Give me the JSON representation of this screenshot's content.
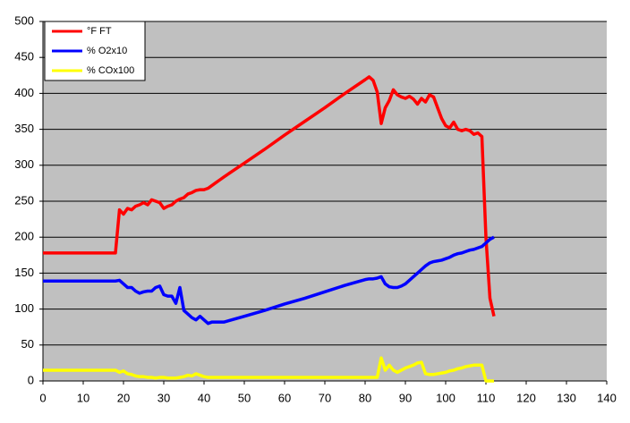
{
  "chart_data": {
    "type": "line",
    "x": [
      0,
      18,
      19,
      20,
      21,
      22,
      23,
      24,
      25,
      26,
      27,
      28,
      29,
      30,
      31,
      32,
      33,
      34,
      35,
      36,
      37,
      38,
      39,
      40,
      41,
      42,
      43,
      44,
      45,
      50,
      55,
      60,
      65,
      70,
      75,
      80,
      81,
      82,
      83,
      84,
      85,
      86,
      87,
      88,
      89,
      90,
      91,
      92,
      93,
      94,
      95,
      96,
      97,
      98,
      99,
      100,
      101,
      102,
      103,
      104,
      105,
      106,
      107,
      108,
      109,
      110,
      111,
      112
    ],
    "series": [
      {
        "name": "°F FT",
        "color": "#ff0000",
        "values": [
          178,
          178,
          238,
          232,
          240,
          238,
          243,
          245,
          248,
          245,
          252,
          250,
          248,
          240,
          243,
          245,
          250,
          253,
          255,
          260,
          262,
          265,
          266,
          266,
          268,
          272,
          276,
          280,
          284,
          303,
          322,
          342,
          361,
          380,
          400,
          419,
          423,
          418,
          402,
          358,
          380,
          390,
          405,
          398,
          395,
          393,
          396,
          392,
          385,
          393,
          388,
          398,
          395,
          380,
          365,
          355,
          352,
          360,
          350,
          348,
          350,
          348,
          343,
          345,
          340,
          200,
          115,
          90
        ]
      },
      {
        "name": "% O2x10",
        "color": "#0000ff",
        "values": [
          139,
          139,
          140,
          135,
          130,
          130,
          125,
          122,
          124,
          125,
          125,
          130,
          132,
          120,
          118,
          118,
          108,
          130,
          98,
          93,
          88,
          85,
          90,
          85,
          80,
          82,
          82,
          82,
          82,
          90,
          98,
          107,
          115,
          124,
          133,
          141,
          142,
          142,
          143,
          145,
          135,
          131,
          130,
          130,
          132,
          135,
          140,
          145,
          150,
          155,
          160,
          164,
          166,
          167,
          168,
          170,
          172,
          175,
          177,
          178,
          180,
          182,
          183,
          185,
          187,
          192,
          197,
          200
        ]
      },
      {
        "name": "% COx100",
        "color": "#ffff00",
        "values": [
          15,
          15,
          12,
          14,
          10,
          9,
          7,
          6,
          6,
          5,
          5,
          4,
          5,
          5,
          4,
          4,
          4,
          5,
          6,
          8,
          7,
          10,
          8,
          6,
          5,
          5,
          5,
          5,
          5,
          5,
          5,
          5,
          5,
          5,
          5,
          5,
          5,
          5,
          5,
          32,
          15,
          22,
          15,
          12,
          15,
          18,
          20,
          22,
          25,
          26,
          10,
          9,
          9,
          10,
          11,
          12,
          14,
          15,
          17,
          18,
          20,
          21,
          22,
          22,
          22,
          0,
          0,
          0
        ]
      }
    ],
    "xlim": [
      0,
      140
    ],
    "xticks": [
      0,
      10,
      20,
      30,
      40,
      50,
      60,
      70,
      80,
      90,
      100,
      110,
      120,
      130,
      140
    ],
    "ylim": [
      0,
      500
    ],
    "yticks": [
      0,
      50,
      100,
      150,
      200,
      250,
      300,
      350,
      400,
      450,
      500
    ],
    "grid": true,
    "legend": "upper-left",
    "plot_background": "#c0c0c0"
  }
}
